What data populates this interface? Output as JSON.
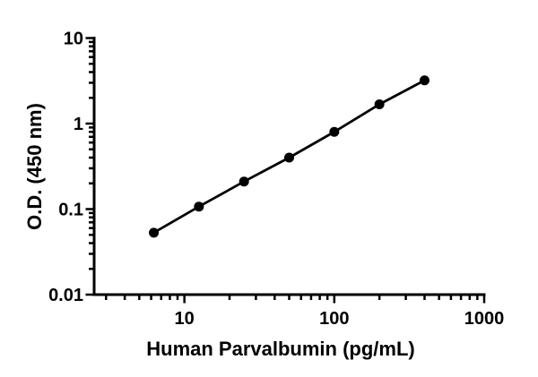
{
  "figure": {
    "background_color": "#ffffff",
    "foreground_color": "#000000"
  },
  "chart_data": {
    "type": "scatter",
    "title": "",
    "xlabel": "Human Parvalbumin (pg/mL)",
    "ylabel": "O.D. (450 nm)",
    "xscale": "log",
    "yscale": "log",
    "xlim": [
      2.5,
      1000
    ],
    "ylim": [
      0.01,
      10
    ],
    "grid": false,
    "legend": null,
    "marker_shape": "filled-circle",
    "marker_color": "#000000",
    "line_color": "#000000",
    "x": [
      6.25,
      12.5,
      25,
      50,
      100,
      200,
      400
    ],
    "y": [
      0.053,
      0.107,
      0.21,
      0.4,
      0.8,
      1.68,
      3.2
    ],
    "x_major_ticks": [
      {
        "value": 10,
        "label": "10"
      },
      {
        "value": 100,
        "label": "100"
      },
      {
        "value": 1000,
        "label": "1000"
      }
    ],
    "y_major_ticks": [
      {
        "value": 10,
        "label": "10"
      },
      {
        "value": 1,
        "label": "1"
      },
      {
        "value": 0.1,
        "label": "0.1"
      },
      {
        "value": 0.01,
        "label": "0.01"
      }
    ],
    "minor_ticks": "log decades 2-9, unlabeled"
  }
}
